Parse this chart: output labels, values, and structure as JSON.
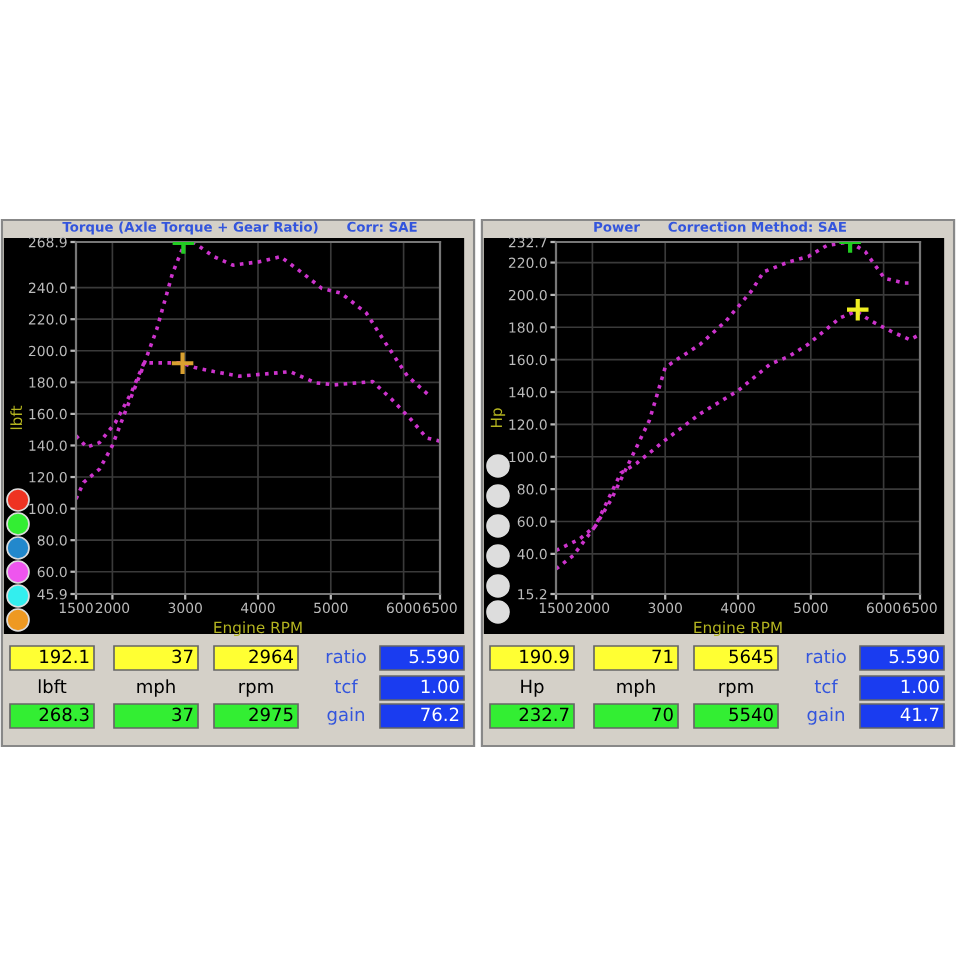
{
  "chart_data": [
    {
      "type": "line",
      "title": "Torque (Axle Torque + Gear Ratio)      Corr: SAE",
      "xlabel": "Engine RPM",
      "ylabel": "lbft",
      "xlim": [
        1500,
        6500
      ],
      "xticks": [
        1500,
        2000,
        3000,
        4000,
        5000,
        6000,
        6500
      ],
      "ylim": [
        45.9,
        268.9
      ],
      "yticks": [
        45.9,
        {
          "value": 60,
          "label": "60.0"
        },
        {
          "value": 80,
          "label": "80.0"
        },
        {
          "value": 100,
          "label": "100.0"
        },
        {
          "value": 120,
          "label": "120.0"
        },
        {
          "value": 140,
          "label": "140.0"
        },
        {
          "value": 160,
          "label": "160.0"
        },
        {
          "value": 180,
          "label": "180.0"
        },
        {
          "value": 200,
          "label": "200.0"
        },
        {
          "value": 220,
          "label": "220.0"
        },
        {
          "value": 240,
          "label": "240.0"
        },
        268.9
      ],
      "grid": true,
      "line_style": "dotted",
      "series": [
        {
          "color": "#cc33cc",
          "x": [
            1500,
            1605,
            1823,
            1997,
            2172,
            2390,
            2608,
            2826,
            3000,
            3132,
            3394,
            3655,
            4004,
            4310,
            4615,
            4877,
            5139,
            5488,
            5750,
            6055,
            6360
          ],
          "values": [
            106.1,
            116.6,
            125.0,
            139.7,
            160.8,
            186.0,
            213.4,
            249.1,
            268.9,
            268.1,
            259.6,
            254.2,
            256.3,
            259.6,
            249.1,
            239.5,
            236.5,
            223.9,
            205.0,
            183.9,
            171.3
          ]
        },
        {
          "color": "#cc33cc",
          "x": [
            1500,
            1648,
            1823,
            2041,
            2259,
            2434,
            2695,
            2957,
            3132,
            3394,
            3743,
            4266,
            4441,
            4790,
            5051,
            5575,
            5837,
            6099,
            6317,
            6500
          ],
          "values": [
            146.1,
            138.9,
            141.8,
            154.5,
            173.4,
            192.3,
            192.3,
            192.3,
            189.4,
            186.8,
            183.9,
            186.0,
            186.8,
            179.7,
            178.4,
            180.5,
            169.2,
            156.6,
            144.8,
            142.7
          ]
        },
        {
          "type": "scatter",
          "marker": "cross",
          "color": "#22cc22",
          "x": [
            2975
          ],
          "values": [
            268.3
          ]
        },
        {
          "type": "scatter",
          "marker": "cross",
          "color": "#d9a030",
          "x": [
            2964
          ],
          "values": [
            192.1
          ]
        }
      ]
    },
    {
      "type": "line",
      "title": "Power      Correction Method: SAE",
      "xlabel": "Engine RPM",
      "ylabel": "Hp",
      "xlim": [
        1500,
        6500
      ],
      "xticks": [
        1500,
        2000,
        3000,
        4000,
        5000,
        6000,
        6500
      ],
      "ylim": [
        15.2,
        232.7
      ],
      "yticks": [
        15.2,
        {
          "value": 40,
          "label": "40.0"
        },
        {
          "value": 60,
          "label": "60.0"
        },
        {
          "value": 80,
          "label": "80.0"
        },
        {
          "value": 100,
          "label": "100.0"
        },
        {
          "value": 120,
          "label": "120.0"
        },
        {
          "value": 140,
          "label": "140.0"
        },
        {
          "value": 160,
          "label": "160.0"
        },
        {
          "value": 180,
          "label": "180.0"
        },
        {
          "value": 200,
          "label": "200.0"
        },
        {
          "value": 220,
          "label": "220.0"
        },
        232.7
      ],
      "grid": true,
      "line_style": "dotted",
      "series": [
        {
          "color": "#cc33cc",
          "x": [
            1500,
            1823,
            2041,
            2259,
            2521,
            2783,
            3000,
            3132,
            3481,
            3830,
            4179,
            4353,
            4703,
            4964,
            5226,
            5540,
            5750,
            6012,
            6273,
            6360
          ],
          "values": [
            42.1,
            49.1,
            57.2,
            73.6,
            98.0,
            122.5,
            155.2,
            159.2,
            169.5,
            183.7,
            202.1,
            214.3,
            220.5,
            223.7,
            230.7,
            232.7,
            226.6,
            210.3,
            207.4,
            207.4
          ]
        },
        {
          "color": "#cc33cc",
          "x": [
            1500,
            1736,
            2041,
            2390,
            2608,
            3000,
            3481,
            4004,
            4441,
            4703,
            4964,
            5401,
            5619,
            5837,
            6099,
            6360,
            6500
          ],
          "values": [
            30.7,
            38.9,
            57.2,
            89.9,
            96.0,
            110.3,
            126.6,
            140.9,
            157.2,
            162.1,
            169.5,
            185.8,
            189.9,
            183.7,
            177.6,
            172.3,
            175.6
          ]
        },
        {
          "type": "scatter",
          "marker": "cross",
          "color": "#22cc22",
          "x": [
            5540
          ],
          "values": [
            232.7
          ]
        },
        {
          "type": "scatter",
          "marker": "cross",
          "color": "#eeee22",
          "x": [
            5645
          ],
          "values": [
            190.9
          ]
        }
      ]
    },
    {
      "type": "other",
      "annotations": [
        "192.1",
        "37",
        "2964",
        "ratio",
        "5.590",
        "lbft",
        "mph",
        "rpm",
        "tcf",
        "1.00",
        "268.3",
        "37",
        "2975",
        "gain",
        "76.2"
      ]
    },
    {
      "type": "other",
      "annotations": [
        "190.9",
        "71",
        "5645",
        "ratio",
        "5.590",
        "Hp",
        "mph",
        "rpm",
        "tcf",
        "1.00",
        "232.7",
        "70",
        "5540",
        "gain",
        "41.7"
      ]
    }
  ]
}
